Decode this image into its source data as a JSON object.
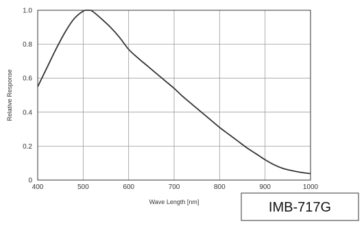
{
  "chart_data": {
    "type": "line",
    "xlabel": "Wave Length [nm]",
    "ylabel": "Relative Response",
    "xlim": [
      400,
      1000
    ],
    "ylim": [
      0,
      1.0
    ],
    "x_ticks": [
      400,
      500,
      600,
      700,
      800,
      900,
      1000
    ],
    "y_ticks": [
      0,
      0.2,
      0.4,
      0.6,
      0.8,
      1.0
    ],
    "x_tick_labels": [
      "400",
      "500",
      "600",
      "700",
      "800",
      "900",
      "1000"
    ],
    "y_tick_labels": [
      "0",
      "0.2",
      "0.4",
      "0.6",
      "0.8",
      "1.0"
    ],
    "grid": true,
    "series": [
      {
        "x": [
          400,
          420,
          440,
          460,
          480,
          500,
          510,
          520,
          540,
          560,
          580,
          600,
          620,
          640,
          660,
          680,
          700,
          720,
          740,
          760,
          780,
          800,
          820,
          840,
          860,
          880,
          900,
          920,
          940,
          960,
          980,
          1000
        ],
        "y": [
          0.55,
          0.66,
          0.77,
          0.87,
          0.95,
          0.995,
          1.0,
          0.995,
          0.95,
          0.9,
          0.84,
          0.77,
          0.72,
          0.675,
          0.63,
          0.585,
          0.54,
          0.49,
          0.445,
          0.4,
          0.355,
          0.31,
          0.27,
          0.23,
          0.19,
          0.155,
          0.12,
          0.09,
          0.068,
          0.055,
          0.045,
          0.038
        ],
        "color": "#333333"
      }
    ]
  },
  "model_label": "IMB-717G"
}
